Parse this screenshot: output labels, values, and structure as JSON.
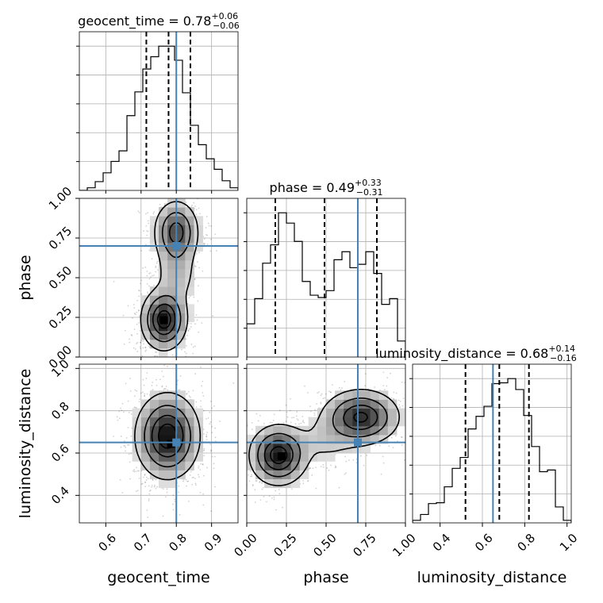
{
  "chart_data": {
    "type": "corner",
    "parameters": [
      "geocent_time",
      "phase",
      "luminosity_distance"
    ],
    "truth_color": "#4682b4",
    "hist_color": "#000000",
    "grid": true,
    "panels": {
      "geocent_time": {
        "title_name": "geocent_time",
        "title_value": "0.78",
        "title_plus": "+0.06",
        "title_minus": "−0.06",
        "range": [
          0.525,
          0.975
        ],
        "ticks": [
          0.6,
          0.7,
          0.8,
          0.9
        ],
        "tick_labels": [
          "0.6",
          "0.7",
          "0.8",
          "0.9"
        ],
        "quantiles": [
          0.715,
          0.778,
          0.84
        ],
        "truth": 0.8,
        "hist_counts": [
          0,
          0.3,
          1,
          2,
          3.3,
          4.5,
          8.5,
          11.2,
          13.8,
          15.2,
          16.4,
          16.4,
          14.8,
          11.1,
          7.4,
          5.2,
          3.6,
          2.4,
          1.1,
          0.3
        ]
      },
      "phase": {
        "title_name": "phase",
        "title_value": "0.49",
        "title_plus": "+0.33",
        "title_minus": "−0.31",
        "range": [
          0.0,
          1.0
        ],
        "ticks": [
          0.0,
          0.25,
          0.5,
          0.75,
          1.0
        ],
        "tick_labels": [
          "0.00",
          "0.25",
          "0.50",
          "0.75",
          "1.00"
        ],
        "quantiles": [
          0.18,
          0.49,
          0.82
        ],
        "truth": 0.7,
        "hist_counts": [
          2.9,
          5.1,
          8.2,
          9.8,
          12.6,
          11.7,
          10.1,
          6.6,
          5.4,
          5.2,
          5.8,
          8.5,
          9.2,
          7.8,
          8.1,
          9.2,
          7.3,
          4.6,
          5.1,
          1.4
        ]
      },
      "luminosity_distance": {
        "title_name": "luminosity_distance",
        "title_value": "0.68",
        "title_plus": "+0.14",
        "title_minus": "−0.16",
        "range": [
          0.27,
          1.02
        ],
        "ticks": [
          0.4,
          0.6,
          0.8,
          1.0
        ],
        "tick_labels": [
          "0.4",
          "0.6",
          "0.8",
          "1.0"
        ],
        "quantiles": [
          0.52,
          0.68,
          0.82
        ],
        "truth": 0.65,
        "hist_counts": [
          0.3,
          1,
          2.3,
          2.4,
          4.3,
          6.5,
          7.8,
          11.2,
          12.7,
          13.9,
          16.6,
          16.7,
          17.2,
          15.9,
          12.8,
          9.1,
          6.1,
          6.3,
          1.9,
          0.3
        ]
      }
    },
    "pairs": [
      {
        "x": "geocent_time",
        "y": "phase",
        "modes": [
          {
            "mx": 0.765,
            "my": 0.235,
            "sx": 0.032,
            "sy": 0.095,
            "w": 1.0
          },
          {
            "mx": 0.8,
            "my": 0.79,
            "sx": 0.032,
            "sy": 0.1,
            "w": 0.72
          },
          {
            "mx": 0.8,
            "my": 0.53,
            "sx": 0.035,
            "sy": 0.12,
            "w": 0.22
          }
        ],
        "max_marker": [
          0.765,
          0.232
        ]
      },
      {
        "x": "geocent_time",
        "y": "luminosity_distance",
        "modes": [
          {
            "mx": 0.775,
            "my": 0.68,
            "sx": 0.045,
            "sy": 0.1,
            "w": 1.0
          }
        ],
        "max_marker": [
          0.785,
          0.643
        ]
      },
      {
        "x": "phase",
        "y": "luminosity_distance",
        "modes": [
          {
            "mx": 0.2,
            "my": 0.59,
            "sx": 0.09,
            "sy": 0.07,
            "w": 1.0
          },
          {
            "mx": 0.72,
            "my": 0.77,
            "sx": 0.12,
            "sy": 0.065,
            "w": 0.9
          },
          {
            "mx": 0.5,
            "my": 0.66,
            "sx": 0.12,
            "sy": 0.07,
            "w": 0.15
          }
        ],
        "max_marker": [
          0.22,
          0.585
        ]
      }
    ]
  }
}
